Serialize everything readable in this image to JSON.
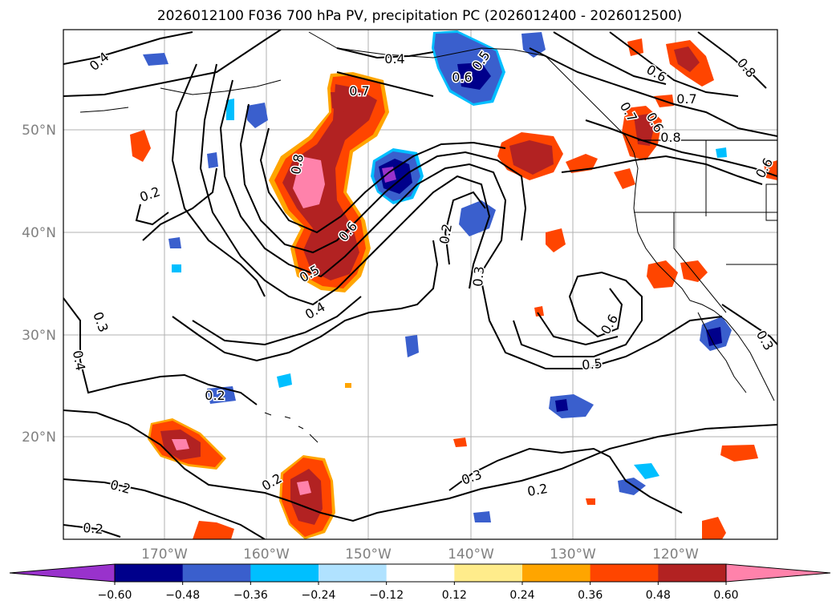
{
  "title": "2026012100 F036 700 hPa PV, precipitation PC (2026012400 - 2026012500)",
  "map": {
    "lat_labels": [
      "50°N",
      "40°N",
      "30°N",
      "20°N"
    ],
    "lon_labels": [
      "170°W",
      "160°W",
      "150°W",
      "140°W",
      "130°W",
      "120°W"
    ],
    "lon_range": [
      -180,
      -110
    ],
    "lat_range": [
      10,
      60
    ]
  },
  "pv_contour_labels": [
    "0.4",
    "0.4",
    "0.5",
    "0.6",
    "0.7",
    "0.8",
    "0.6",
    "0.8",
    "0.7",
    "0.2",
    "0.7",
    "0.8",
    "0.6",
    "0.5",
    "0.4",
    "0.2",
    "0.3",
    "0.6",
    "0.5",
    "0.6",
    "0.3",
    "0.3",
    "0.4",
    "0.2",
    "0.2",
    "0.2",
    "0.3",
    "0.2",
    "0.2",
    "0.6"
  ],
  "colorbar": {
    "ticks": [
      "−0.60",
      "−0.48",
      "−0.36",
      "−0.24",
      "−0.12",
      "0.12",
      "0.24",
      "0.36",
      "0.48",
      "0.60"
    ],
    "colors": [
      "#9932cc",
      "#00008b",
      "#3a5fcd",
      "#00bfff",
      "#b0e2ff",
      "#ffffff",
      "#ffec8b",
      "#ffa500",
      "#ff4500",
      "#b22222",
      "#ff82ab"
    ]
  }
}
